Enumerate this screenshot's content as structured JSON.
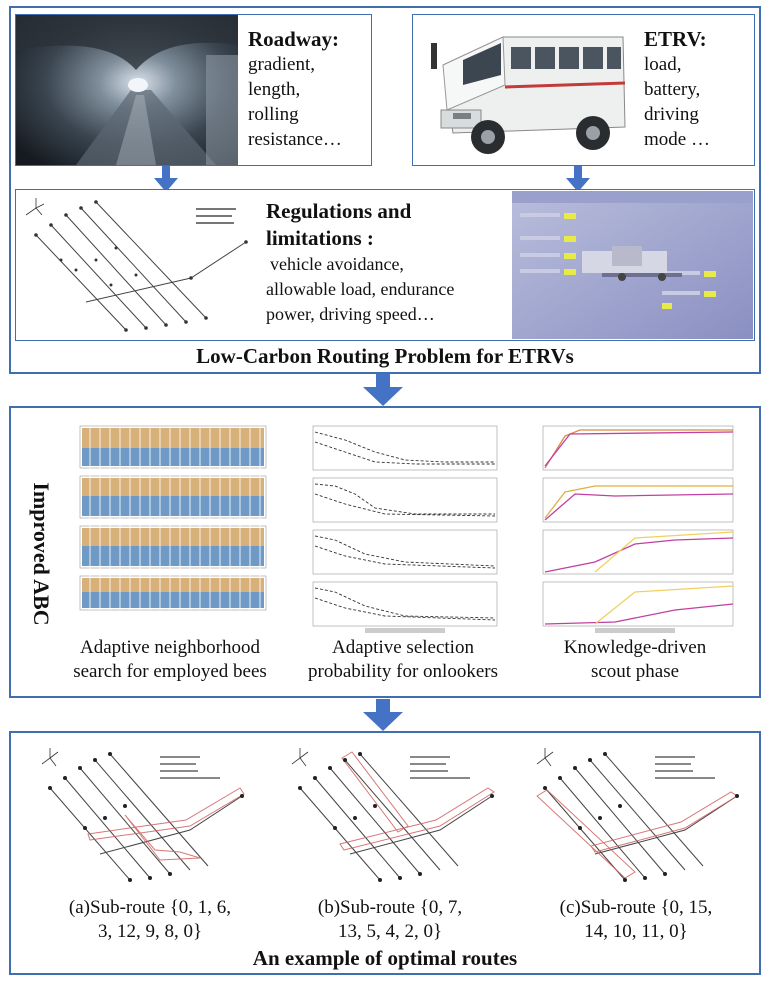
{
  "top": {
    "roadway": {
      "title": "Roadway:",
      "lines": [
        "gradient,",
        "length,",
        "rolling",
        "resistance…"
      ]
    },
    "etrv": {
      "title": "ETRV:",
      "lines": [
        "load,",
        "battery,",
        "driving",
        "mode …"
      ]
    },
    "regulations": {
      "title1": "Regulations and",
      "title2": "limitations :",
      "lines": [
        "vehicle avoidance,",
        "allowable load, endurance",
        "power, driving speed…"
      ]
    },
    "problem_title": "Low-Carbon Routing Problem for ETRVs"
  },
  "middle": {
    "side_label": "Improved ABC",
    "columns": [
      {
        "caption1": "Adaptive neighborhood",
        "caption2": "search for employed bees"
      },
      {
        "caption1": "Adaptive selection",
        "caption2": "probability for onlookers"
      },
      {
        "caption1": "Knowledge-driven",
        "caption2": "scout phase"
      }
    ]
  },
  "bottom": {
    "routes": [
      {
        "line1": "(a)Sub-route {0, 1, 6,",
        "line2": "3, 12, 9, 8, 0}"
      },
      {
        "line1": "(b)Sub-route {0, 7,",
        "line2": "13, 5, 4, 2, 0}"
      },
      {
        "line1": "(c)Sub-route {0, 15,",
        "line2": "14, 10, 11, 0}"
      }
    ],
    "title": "An example of optimal routes"
  },
  "colors": {
    "frame": "#3f6fb0",
    "arrow": "#4472c4"
  }
}
